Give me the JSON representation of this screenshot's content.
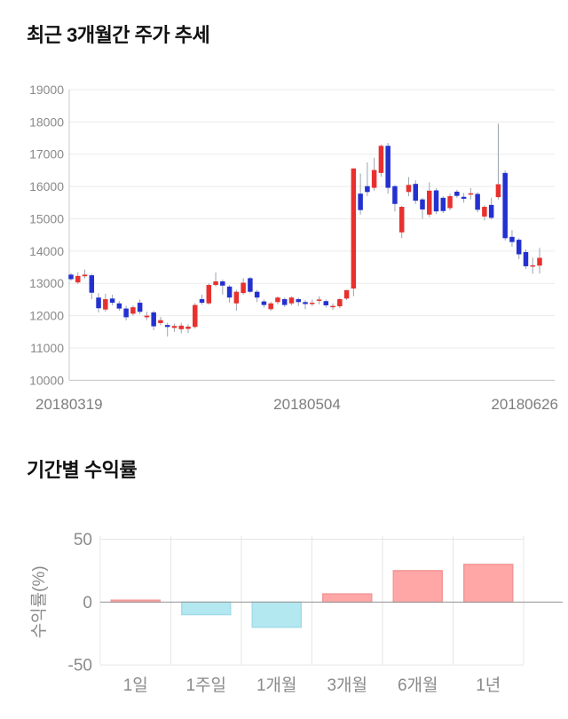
{
  "page": {
    "background": "#ffffff"
  },
  "chart_data": [
    {
      "type": "candlestick",
      "title": "최근 3개월간 주가 추세",
      "ylabel": "",
      "xlabel": "",
      "ylim": [
        10000,
        19000
      ],
      "y_ticks": [
        19000,
        18000,
        17000,
        16000,
        15000,
        14000,
        13000,
        12000,
        11000,
        10000
      ],
      "x_ticks": [
        "20180319",
        "20180504",
        "20180626"
      ],
      "grid": "horizontal",
      "up_color": "#e8312e",
      "down_color": "#2431d0",
      "wick_color": "#9aa3ad",
      "axis_line_color": "#c9c9c9",
      "grid_color": "#ebebeb",
      "tick_text_color": "#8a8a8a",
      "candles_ohlc": [
        [
          13270,
          13320,
          13080,
          13130
        ],
        [
          13030,
          13340,
          12980,
          13230
        ],
        [
          13220,
          13430,
          13150,
          13270
        ],
        [
          13250,
          13300,
          12510,
          12710
        ],
        [
          12560,
          12700,
          12100,
          12230
        ],
        [
          12190,
          12680,
          12120,
          12510
        ],
        [
          12530,
          12650,
          12320,
          12400
        ],
        [
          12380,
          12450,
          12150,
          12220
        ],
        [
          12220,
          12300,
          11850,
          11950
        ],
        [
          12060,
          12320,
          12000,
          12260
        ],
        [
          12400,
          12500,
          12050,
          12120
        ],
        [
          11950,
          12120,
          11860,
          12000
        ],
        [
          12100,
          12150,
          11550,
          11670
        ],
        [
          11770,
          11960,
          11700,
          11860
        ],
        [
          11710,
          11780,
          11350,
          11650
        ],
        [
          11620,
          11750,
          11500,
          11680
        ],
        [
          11580,
          11780,
          11450,
          11690
        ],
        [
          11590,
          11730,
          11460,
          11660
        ],
        [
          11650,
          12390,
          11600,
          12330
        ],
        [
          12510,
          12650,
          12340,
          12400
        ],
        [
          12380,
          13000,
          12340,
          12950
        ],
        [
          12950,
          13340,
          12900,
          13060
        ],
        [
          13060,
          13120,
          12650,
          12930
        ],
        [
          12900,
          12950,
          12400,
          12560
        ],
        [
          12380,
          12800,
          12150,
          12740
        ],
        [
          12700,
          13160,
          12650,
          13020
        ],
        [
          13160,
          13200,
          12700,
          12740
        ],
        [
          12740,
          12800,
          12420,
          12560
        ],
        [
          12440,
          12500,
          12250,
          12330
        ],
        [
          12200,
          12430,
          12150,
          12380
        ],
        [
          12420,
          12600,
          12350,
          12560
        ],
        [
          12510,
          12560,
          12270,
          12330
        ],
        [
          12380,
          12600,
          12320,
          12560
        ],
        [
          12510,
          12560,
          12300,
          12420
        ],
        [
          12420,
          12480,
          12200,
          12360
        ],
        [
          12400,
          12500,
          12300,
          12400
        ],
        [
          12500,
          12600,
          12350,
          12500
        ],
        [
          12450,
          12500,
          12250,
          12320
        ],
        [
          12300,
          12380,
          12180,
          12300
        ],
        [
          12290,
          12550,
          12230,
          12510
        ],
        [
          12530,
          12800,
          12480,
          12790
        ],
        [
          12840,
          16560,
          12600,
          16560
        ],
        [
          15780,
          16400,
          15130,
          15270
        ],
        [
          16010,
          16750,
          15700,
          15830
        ],
        [
          15960,
          16890,
          15870,
          16510
        ],
        [
          16420,
          17300,
          16300,
          17260
        ],
        [
          17260,
          17350,
          15780,
          15960
        ],
        [
          16010,
          16050,
          15230,
          15460
        ],
        [
          14580,
          15400,
          14400,
          15370
        ],
        [
          15830,
          16290,
          15700,
          16050
        ],
        [
          16080,
          16190,
          15460,
          15560
        ],
        [
          15600,
          15650,
          15000,
          15290
        ],
        [
          15130,
          16130,
          15050,
          15870
        ],
        [
          15880,
          15950,
          15150,
          15230
        ],
        [
          15650,
          15700,
          15180,
          15240
        ],
        [
          15330,
          15780,
          15260,
          15700
        ],
        [
          15840,
          15900,
          15650,
          15710
        ],
        [
          15680,
          15800,
          15500,
          15620
        ],
        [
          15780,
          15950,
          15600,
          15790
        ],
        [
          15770,
          15820,
          15200,
          15280
        ],
        [
          15070,
          15420,
          14950,
          15370
        ],
        [
          15430,
          15650,
          14980,
          15030
        ],
        [
          15670,
          17950,
          15600,
          16070
        ],
        [
          16420,
          16500,
          14330,
          14400
        ],
        [
          14440,
          14650,
          14130,
          14280
        ],
        [
          14350,
          14400,
          13750,
          13900
        ],
        [
          13970,
          14050,
          13450,
          13530
        ],
        [
          13560,
          13800,
          13300,
          13560
        ],
        [
          13550,
          14100,
          13300,
          13790
        ]
      ]
    },
    {
      "type": "bar",
      "title": "기간별 수익률",
      "ylabel": "수익률(%)",
      "xlabel": "",
      "categories": [
        "1일",
        "1주일",
        "1개월",
        "3개월",
        "6개월",
        "1년"
      ],
      "values": [
        1.5,
        -10,
        -20,
        6.5,
        25,
        30
      ],
      "y_ticks": [
        50,
        0,
        -50
      ],
      "ylim": [
        -50,
        50
      ],
      "grid": "on",
      "legend": "none",
      "positive_color": "#ffa6a6",
      "positive_border": "#f29898",
      "negative_color": "#b3e8f1",
      "negative_border": "#a2dce8",
      "zero_line_color": "#9e9e9e",
      "grid_color": "#e6e6e6",
      "tick_text_color": "#8a8a8a"
    }
  ]
}
